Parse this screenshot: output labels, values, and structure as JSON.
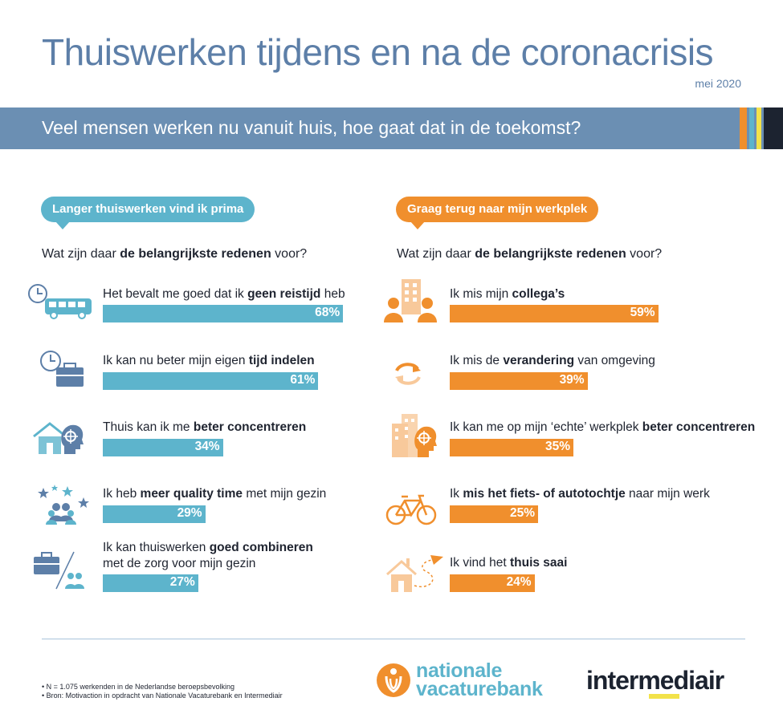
{
  "header": {
    "title": "Thuiswerken tijdens en na de coronacrisis",
    "date": "mei 2020",
    "subtitle": "Veel mensen werken nu vanuit huis, hoe gaat dat in de toekomst?"
  },
  "colors": {
    "blue": "#5db4cc",
    "orange": "#f08f2d",
    "banner": "#6b8fb3",
    "title": "#5d7fa8"
  },
  "left": {
    "pill": "Langer thuiswerken vind ik prima",
    "question_pre": "Wat zijn daar ",
    "question_bold": "de belangrijkste redenen",
    "question_post": " voor?",
    "items": [
      {
        "pre": "Het bevalt me goed dat ik ",
        "bold": "geen reistijd",
        "post": " heb",
        "value_label": "68%",
        "icon": "clock-bus-icon"
      },
      {
        "pre": "Ik kan nu beter mijn eigen ",
        "bold": "tijd indelen",
        "post": "",
        "value_label": "61%",
        "icon": "clock-briefcase-icon"
      },
      {
        "pre": "Thuis kan ik me ",
        "bold": "beter concentreren",
        "post": "",
        "value_label": "34%",
        "icon": "house-focus-icon"
      },
      {
        "pre": "Ik heb ",
        "bold": "meer quality time",
        "post": " met mijn gezin",
        "value_label": "29%",
        "icon": "family-stars-icon"
      },
      {
        "pre": "Ik kan thuiswerken ",
        "bold": "goed combineren",
        "post": "",
        "line2": "met de zorg voor mijn gezin",
        "value_label": "27%",
        "icon": "briefcase-family-icon"
      }
    ]
  },
  "right": {
    "pill": "Graag terug naar mijn werkplek",
    "question_pre": "Wat zijn daar ",
    "question_bold": "de belangrijkste redenen",
    "question_post": " voor?",
    "items": [
      {
        "pre": "Ik mis mijn ",
        "bold": "collega’s",
        "post": "",
        "value_label": "59%",
        "icon": "colleagues-office-icon"
      },
      {
        "pre": "Ik mis de ",
        "bold": "verandering",
        "post": " van omgeving",
        "value_label": "39%",
        "icon": "change-arrows-icon"
      },
      {
        "pre": "Ik kan me op mijn ‘echte’ werkplek ",
        "bold": "beter concentreren",
        "post": "",
        "value_label": "35%",
        "icon": "office-focus-icon"
      },
      {
        "pre": "Ik ",
        "bold": "mis het fiets- of autotochtje",
        "post": " naar mijn werk",
        "value_label": "25%",
        "icon": "bicycle-icon"
      },
      {
        "pre": "Ik vind het ",
        "bold": "thuis saai",
        "post": "",
        "value_label": "24%",
        "icon": "house-paperplane-icon"
      }
    ]
  },
  "chart_data": [
    {
      "type": "bar",
      "categories": [
        "Het bevalt me goed dat ik geen reistijd heb",
        "Ik kan nu beter mijn eigen tijd indelen",
        "Thuis kan ik me beter concentreren",
        "Ik heb meer quality time met mijn gezin",
        "Ik kan thuiswerken goed combineren met de zorg voor mijn gezin"
      ],
      "values": [
        68,
        61,
        34,
        29,
        27
      ],
      "title": "Langer thuiswerken vind ik prima",
      "unit": "%"
    },
    {
      "type": "bar",
      "categories": [
        "Ik mis mijn collega’s",
        "Ik mis de verandering van omgeving",
        "Ik kan me op mijn ‘echte’ werkplek beter concentreren",
        "Ik mis het fiets- of autotochtje naar mijn werk",
        "Ik vind het thuis saai"
      ],
      "values": [
        59,
        39,
        35,
        25,
        24
      ],
      "title": "Graag terug naar mijn werkplek",
      "unit": "%"
    }
  ],
  "footer": {
    "note1": "• N = 1.075 werkenden in de Nederlandse beroepsbevolking",
    "note2": "• Bron: Motivaction in opdracht van Nationale Vacaturebank en Intermediair",
    "logo1_line1": "nationale",
    "logo1_line2": "vacaturebank",
    "logo2": "intermediair"
  }
}
